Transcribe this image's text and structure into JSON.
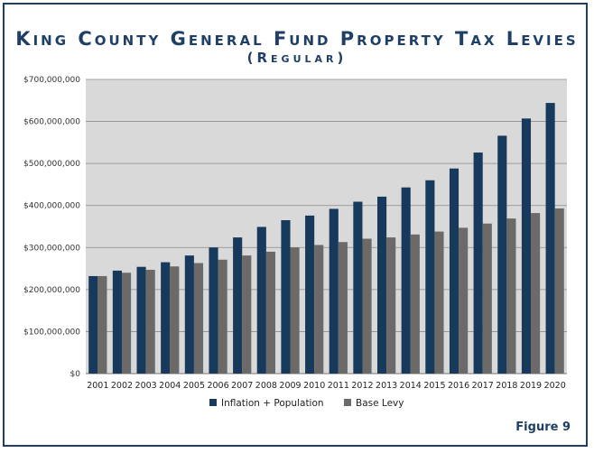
{
  "title": "King County General Fund Property Tax Levies",
  "subtitle": "(Regular)",
  "figure_label": "Figure 9",
  "colors": {
    "inflation": "#173a5c",
    "base": "#6b6a68",
    "plot_bg": "#d9d9d9",
    "frame": "#1f3f66"
  },
  "chart_data": {
    "type": "bar",
    "title": "King County General Fund Property Tax Levies",
    "subtitle": "(Regular)",
    "xlabel": "",
    "ylabel": "",
    "ylim": [
      0,
      700000000
    ],
    "yticks": [
      0,
      100000000,
      200000000,
      300000000,
      400000000,
      500000000,
      600000000,
      700000000
    ],
    "ytick_labels": [
      "$0",
      "$100,000,000",
      "$200,000,000",
      "$300,000,000",
      "$400,000,000",
      "$500,000,000",
      "$600,000,000",
      "$700,000,000"
    ],
    "grid": true,
    "legend_position": "bottom",
    "categories": [
      "2001",
      "2002",
      "2003",
      "2004",
      "2005",
      "2006",
      "2007",
      "2008",
      "2009",
      "2010",
      "2011",
      "2012",
      "2013",
      "2014",
      "2015",
      "2016",
      "2017",
      "2018",
      "2019",
      "2020"
    ],
    "series": [
      {
        "name": "Inflation + Population",
        "color": "#173a5c",
        "values": [
          232000000,
          245000000,
          254000000,
          265000000,
          281000000,
          300000000,
          324000000,
          349000000,
          365000000,
          376000000,
          392000000,
          409000000,
          421000000,
          443000000,
          460000000,
          488000000,
          526000000,
          566000000,
          607000000,
          644000000
        ]
      },
      {
        "name": "Base Levy",
        "color": "#6b6a68",
        "values": [
          232000000,
          240000000,
          247000000,
          255000000,
          263000000,
          271000000,
          281000000,
          290000000,
          300000000,
          306000000,
          313000000,
          321000000,
          324000000,
          331000000,
          338000000,
          347000000,
          357000000,
          369000000,
          382000000,
          393000000
        ]
      }
    ]
  }
}
